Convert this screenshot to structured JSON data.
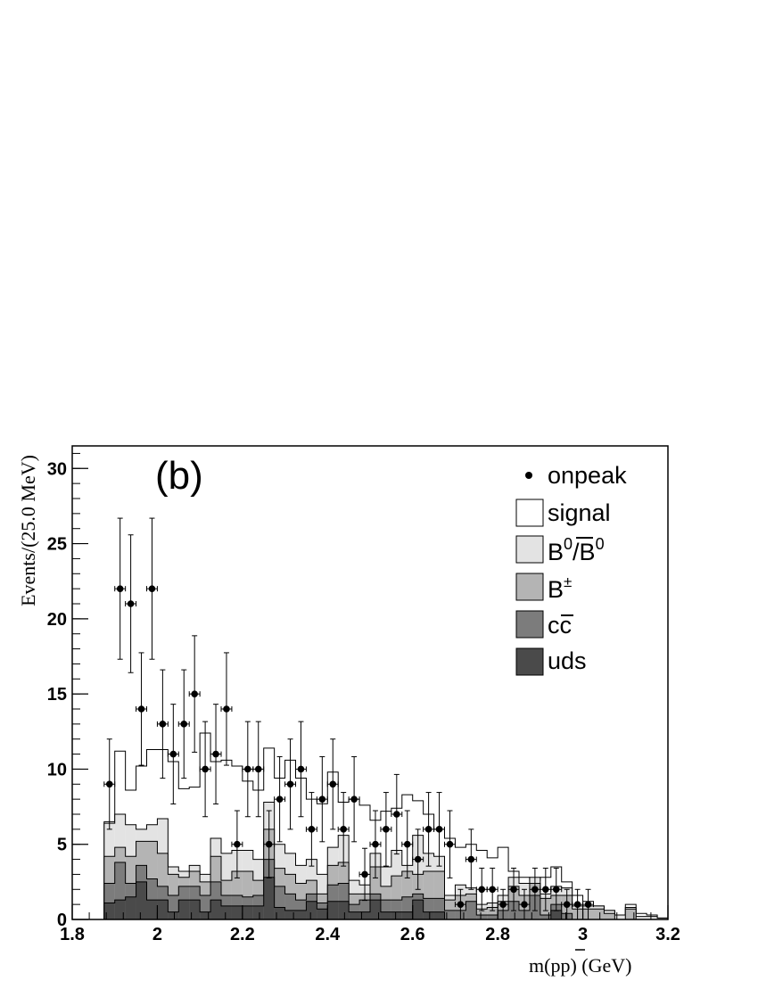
{
  "chart_data": {
    "type": "bar",
    "panel_label": "(b)",
    "xlabel_main": "m(p",
    "xlabel_bar": "p",
    "xlabel_end": ") (GeV)",
    "ylabel": "Events/(25.0 MeV)",
    "xlim": [
      1.8,
      3.2
    ],
    "ylim": [
      0,
      31.5
    ],
    "x_ticks": [
      "1.8",
      "2",
      "2.2",
      "2.4",
      "2.6",
      "2.8",
      "3",
      "3.2"
    ],
    "y_ticks": [
      "0",
      "5",
      "10",
      "15",
      "20",
      "25",
      "30"
    ],
    "bin_width_gev": 0.025,
    "bin_start_gev": 1.875,
    "legend_location": "top-right",
    "legend": {
      "onpeak": "onpeak",
      "signal": "signal",
      "b0_base": "B",
      "b0_sup1": "0",
      "b0_slash": "/",
      "b0_bar": "B",
      "b0_sup2": "0",
      "bpm_base": "B",
      "bpm_sup": "±",
      "cc_c1": "c",
      "cc_c2": "c",
      "uds": "uds"
    },
    "colors": {
      "signal": "#ffffff",
      "b0": "#e3e3e3",
      "bpm": "#b4b4b4",
      "cc": "#7c7c7c",
      "uds": "#4a4a4a"
    },
    "series": [
      {
        "name": "uds",
        "values": [
          1.1,
          1.3,
          1.5,
          2.5,
          1.3,
          1.3,
          0.5,
          1.3,
          1.3,
          0.5,
          1.3,
          0.9,
          0.9,
          0.9,
          0.9,
          2.8,
          0.8,
          0.6,
          0.6,
          1.2,
          0.7,
          1.2,
          1.2,
          0.5,
          0.5,
          1.3,
          0.5,
          0.5,
          0.5,
          1.3,
          0.5,
          0.5,
          0,
          0,
          0,
          0,
          0,
          0,
          0,
          0,
          0,
          0,
          0.6,
          0,
          0,
          0,
          0,
          0,
          0,
          0,
          0,
          0,
          0
        ]
      },
      {
        "name": "cc",
        "values": [
          2.4,
          3.8,
          2.4,
          3.6,
          2.7,
          2.2,
          1.6,
          2.2,
          2.2,
          1.6,
          2.5,
          1.6,
          1.6,
          1.5,
          1.6,
          4.0,
          2.2,
          1.7,
          1.3,
          1.7,
          1.1,
          2.3,
          2.4,
          1.0,
          1.3,
          1.7,
          1.3,
          1.3,
          1.5,
          1.7,
          1.4,
          1.4,
          0.6,
          0.6,
          1.2,
          0.3,
          0.3,
          0.6,
          1.2,
          0.6,
          1.6,
          0.3,
          1.0,
          0.4,
          0,
          0,
          0,
          0,
          0,
          0,
          0,
          0,
          0
        ]
      },
      {
        "name": "bpm",
        "values": [
          4.2,
          4.8,
          4.2,
          5.2,
          5.2,
          4.4,
          3.0,
          2.8,
          3.2,
          2.5,
          4.2,
          2.6,
          3.2,
          3.2,
          2.6,
          6.0,
          3.4,
          3.0,
          2.4,
          2.6,
          1.7,
          3.6,
          3.8,
          1.7,
          1.7,
          3.5,
          2.2,
          2.9,
          3.2,
          3.0,
          3.2,
          3.2,
          1.3,
          1.6,
          1.7,
          0.7,
          0.8,
          1.2,
          2.2,
          1.6,
          2.4,
          1.4,
          1.6,
          1.6,
          0.7,
          0.7,
          0.7,
          0.4,
          0,
          0.7,
          0,
          0,
          0
        ]
      },
      {
        "name": "b0",
        "values": [
          6.4,
          7.0,
          6.3,
          6.0,
          6.3,
          6.7,
          3.5,
          3.2,
          3.6,
          3.0,
          5.4,
          4.4,
          4.6,
          4.6,
          4.0,
          7.8,
          5.0,
          4.4,
          3.6,
          4.0,
          3.0,
          4.8,
          5.6,
          2.6,
          2.3,
          4.4,
          3.5,
          4.6,
          3.6,
          5.6,
          4.4,
          4.2,
          1.6,
          2.3,
          2.1,
          1.0,
          1.1,
          1.6,
          2.8,
          2.4,
          2.8,
          1.7,
          2.2,
          2.1,
          0.9,
          0.9,
          0.9,
          0.6,
          0.3,
          0.8,
          0.2,
          0.2,
          0.1
        ]
      },
      {
        "name": "signal",
        "values": [
          6.5,
          11.2,
          8.6,
          10.2,
          11.3,
          11.3,
          10.5,
          8.7,
          8.8,
          12.4,
          10.5,
          10.6,
          10.2,
          9.2,
          8.6,
          11.4,
          9.4,
          10.6,
          9.4,
          8.0,
          7.7,
          9.8,
          7.8,
          8.0,
          7.6,
          6.6,
          7.2,
          7.4,
          8.3,
          7.9,
          7.0,
          6.0,
          5.4,
          4.8,
          5.0,
          4.6,
          4.1,
          4.8,
          3.2,
          2.8,
          2.6,
          2.8,
          3.5,
          2.5,
          1.6,
          1.2,
          0.9,
          0.6,
          0.2,
          1.0,
          0.4,
          0.3,
          0.1
        ]
      }
    ],
    "onpeak": {
      "x": [
        1.8875,
        1.9125,
        1.9375,
        1.9625,
        1.9875,
        2.0125,
        2.0375,
        2.0625,
        2.0875,
        2.1125,
        2.1375,
        2.1625,
        2.1875,
        2.2125,
        2.2375,
        2.2625,
        2.2875,
        2.3125,
        2.3375,
        2.3625,
        2.3875,
        2.4125,
        2.4375,
        2.4625,
        2.4875,
        2.5125,
        2.5375,
        2.5625,
        2.5875,
        2.6125,
        2.6375,
        2.6625,
        2.6875,
        2.7125,
        2.7375,
        2.7625,
        2.7875,
        2.8125,
        2.8375,
        2.8625,
        2.8875,
        2.9125,
        2.9375,
        2.9625,
        2.9875,
        3.0125
      ],
      "y": [
        9,
        22,
        21,
        14,
        22,
        13,
        11,
        13,
        15,
        10,
        11,
        14,
        5,
        10,
        10,
        5,
        8,
        9,
        10,
        6,
        8,
        9,
        6,
        8,
        3,
        5,
        6,
        7,
        5,
        4,
        6,
        6,
        5,
        1,
        4,
        2,
        2,
        1,
        2,
        1,
        2,
        2,
        2,
        1,
        1,
        1
      ]
    }
  }
}
